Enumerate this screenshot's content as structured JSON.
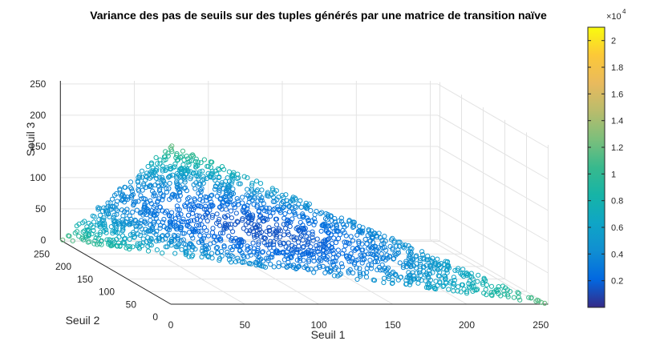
{
  "chart_data": {
    "type": "scatter",
    "title": "Variance des pas de seuils sur des tuples générés par une matrice de transition naïve",
    "xlabel": "Seuil 1",
    "ylabel": "Seuil 2",
    "zlabel": "Seuil 3",
    "xlim": [
      0,
      255
    ],
    "ylim": [
      0,
      255
    ],
    "zlim": [
      0,
      255
    ],
    "xticks": [
      "0",
      "50",
      "100",
      "150",
      "200",
      "250"
    ],
    "yticks": [
      "0",
      "50",
      "100",
      "150",
      "200",
      "250"
    ],
    "zticks": [
      "0",
      "50",
      "100",
      "150",
      "200",
      "250"
    ],
    "grid": true,
    "marker": "open-circle",
    "constraint": "points lie on the simplex x + y + z ≈ 255",
    "approx_point_count": 1800,
    "color_by": "variance of threshold steps",
    "colorbar": {
      "colormap": "parula",
      "range": [
        0,
        21000
      ],
      "ticks": [
        "0.2",
        "0.4",
        "0.6",
        "0.8",
        "1",
        "1.2",
        "1.4",
        "1.6",
        "1.8",
        "2"
      ],
      "exponent_label": "×10",
      "exponent": "4"
    },
    "sample_points": [
      {
        "x": 1,
        "y": 1,
        "z": 253
      },
      {
        "x": 253,
        "y": 1,
        "z": 1
      },
      {
        "x": 1,
        "y": 253,
        "z": 1
      },
      {
        "x": 85,
        "y": 85,
        "z": 85
      },
      {
        "x": 40,
        "y": 120,
        "z": 95
      },
      {
        "x": 120,
        "y": 40,
        "z": 95
      },
      {
        "x": 60,
        "y": 60,
        "z": 135
      }
    ]
  }
}
